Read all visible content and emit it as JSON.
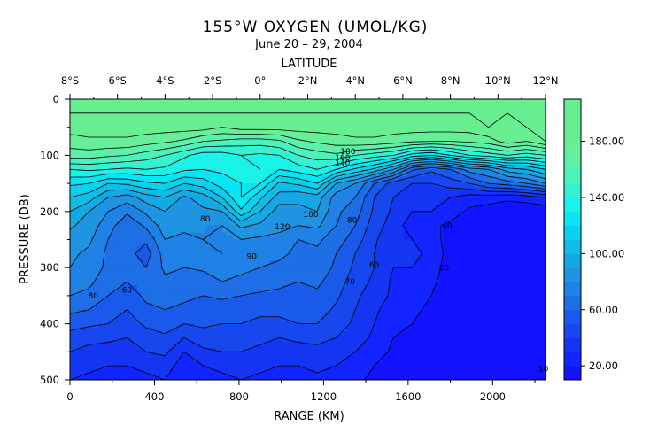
{
  "chart_data": {
    "type": "heatmap",
    "title": "155°W OXYGEN (UMOL/KG)",
    "subtitle": "June 20 – 29, 2004",
    "top_axis_label": "LATITUDE",
    "top_ticks": [
      "8°S",
      "6°S",
      "4°S",
      "2°S",
      "0°",
      "2°N",
      "4°N",
      "6°N",
      "8°N",
      "10°N",
      "12°N"
    ],
    "xlabel": "RANGE (KM)",
    "xlim": [
      0,
      2250
    ],
    "x_ticks": [
      0,
      400,
      800,
      1200,
      1600,
      2000
    ],
    "ylabel": "PRESSURE (DB)",
    "ylim": [
      0,
      500
    ],
    "y_ticks": [
      0,
      100,
      200,
      300,
      400,
      500
    ],
    "colorbar": {
      "ticks": [
        "20.00",
        "60.00",
        "100.00",
        "140.00",
        "180.00"
      ],
      "range": [
        10,
        210
      ],
      "colors": [
        "#1212ff",
        "#1224ff",
        "#1436f2",
        "#1648ee",
        "#1a5aea",
        "#1e6ee6",
        "#1f82e4",
        "#1f95e2",
        "#14a8e4",
        "#0ebee6",
        "#0ad2ec",
        "#06e6f2",
        "#1af2ea",
        "#34f2d2",
        "#4af2bc",
        "#5cf0a8",
        "#66ee98",
        "#66ee90",
        "#66ee90",
        "#66ee90"
      ]
    },
    "contour_labels": [
      {
        "text": "180",
        "x": 1315,
        "y": 98
      },
      {
        "text": "160",
        "x": 1290,
        "y": 109
      },
      {
        "text": "140",
        "x": 1290,
        "y": 118
      },
      {
        "text": "120",
        "x": 1005,
        "y": 232
      },
      {
        "text": "100",
        "x": 1140,
        "y": 210
      },
      {
        "text": "80",
        "x": 1335,
        "y": 220
      },
      {
        "text": "80",
        "x": 640,
        "y": 218
      },
      {
        "text": "90",
        "x": 860,
        "y": 285
      },
      {
        "text": "80",
        "x": 110,
        "y": 355
      },
      {
        "text": "60",
        "x": 270,
        "y": 345
      },
      {
        "text": "70",
        "x": 1325,
        "y": 330
      },
      {
        "text": "60",
        "x": 1440,
        "y": 300
      },
      {
        "text": "60",
        "x": 1770,
        "y": 305
      },
      {
        "text": "40",
        "x": 1785,
        "y": 230
      },
      {
        "text": "10",
        "x": 2240,
        "y": 485
      }
    ],
    "grid": [
      [
        200,
        195,
        195,
        200,
        195,
        195,
        195,
        195,
        195,
        195,
        195,
        195,
        195,
        195,
        195,
        195,
        195,
        195,
        195,
        195,
        195,
        195,
        195,
        195,
        195,
        195
      ],
      [
        190,
        190,
        190,
        190,
        190,
        190,
        190,
        190,
        190,
        190,
        190,
        190,
        190,
        190,
        190,
        190,
        190,
        190,
        190,
        190,
        190,
        190,
        190,
        190,
        190,
        195
      ],
      [
        185,
        185,
        185,
        185,
        185,
        185,
        185,
        185,
        180,
        185,
        185,
        185,
        185,
        185,
        185,
        185,
        185,
        185,
        185,
        185,
        185,
        185,
        190,
        185,
        190,
        195
      ],
      [
        175,
        178,
        178,
        178,
        175,
        172,
        168,
        160,
        158,
        155,
        155,
        158,
        168,
        172,
        175,
        178,
        178,
        175,
        172,
        170,
        170,
        172,
        175,
        185,
        180,
        190
      ],
      [
        165,
        165,
        162,
        160,
        155,
        150,
        142,
        135,
        135,
        140,
        138,
        140,
        150,
        155,
        158,
        150,
        145,
        140,
        125,
        120,
        130,
        140,
        145,
        150,
        145,
        150
      ],
      [
        140,
        142,
        140,
        138,
        140,
        138,
        132,
        130,
        132,
        138,
        140,
        130,
        135,
        140,
        130,
        118,
        108,
        90,
        62,
        52,
        60,
        75,
        80,
        95,
        100,
        110
      ],
      [
        122,
        120,
        110,
        112,
        118,
        120,
        110,
        115,
        125,
        130,
        130,
        108,
        112,
        120,
        90,
        80,
        60,
        45,
        40,
        40,
        45,
        50,
        60,
        65,
        70,
        80
      ],
      [
        110,
        105,
        90,
        85,
        95,
        100,
        88,
        95,
        110,
        130,
        112,
        95,
        92,
        95,
        75,
        70,
        50,
        40,
        35,
        32,
        30,
        25,
        25,
        22,
        25,
        30
      ],
      [
        100,
        90,
        80,
        72,
        82,
        90,
        85,
        88,
        90,
        118,
        100,
        85,
        88,
        90,
        72,
        65,
        48,
        38,
        30,
        30,
        25,
        18,
        15,
        14,
        12,
        12
      ],
      [
        92,
        85,
        75,
        62,
        72,
        85,
        82,
        80,
        80,
        92,
        88,
        82,
        80,
        82,
        70,
        60,
        45,
        35,
        25,
        22,
        18,
        14,
        12,
        12,
        12,
        12
      ],
      [
        85,
        82,
        70,
        60,
        62,
        80,
        78,
        80,
        78,
        80,
        78,
        78,
        70,
        72,
        65,
        55,
        42,
        30,
        30,
        25,
        15,
        13,
        12,
        12,
        12,
        12
      ],
      [
        82,
        78,
        68,
        64,
        55,
        75,
        72,
        75,
        80,
        74,
        72,
        74,
        66,
        68,
        60,
        50,
        40,
        30,
        32,
        28,
        15,
        13,
        12,
        12,
        12,
        12
      ],
      [
        80,
        75,
        68,
        66,
        60,
        72,
        70,
        72,
        75,
        72,
        70,
        66,
        62,
        66,
        58,
        48,
        40,
        30,
        30,
        25,
        15,
        12,
        12,
        12,
        12,
        12
      ],
      [
        75,
        72,
        65,
        60,
        62,
        68,
        66,
        64,
        70,
        68,
        66,
        62,
        60,
        62,
        55,
        45,
        38,
        28,
        28,
        22,
        15,
        12,
        12,
        12,
        12,
        12
      ],
      [
        70,
        68,
        60,
        55,
        62,
        64,
        62,
        60,
        62,
        60,
        58,
        58,
        56,
        58,
        52,
        42,
        35,
        28,
        25,
        20,
        13,
        12,
        12,
        12,
        12,
        12
      ],
      [
        62,
        60,
        55,
        50,
        58,
        60,
        58,
        55,
        55,
        55,
        52,
        52,
        54,
        55,
        48,
        40,
        32,
        25,
        22,
        18,
        12,
        12,
        12,
        12,
        12,
        12
      ],
      [
        55,
        52,
        50,
        45,
        52,
        55,
        50,
        52,
        50,
        50,
        48,
        48,
        50,
        50,
        45,
        38,
        30,
        22,
        20,
        16,
        12,
        12,
        12,
        12,
        12,
        12
      ],
      [
        45,
        42,
        42,
        40,
        45,
        48,
        40,
        45,
        45,
        45,
        42,
        40,
        42,
        42,
        40,
        35,
        28,
        20,
        18,
        15,
        12,
        12,
        12,
        12,
        12,
        12
      ],
      [
        40,
        38,
        36,
        35,
        40,
        42,
        30,
        38,
        40,
        40,
        38,
        36,
        36,
        38,
        35,
        30,
        25,
        18,
        15,
        13,
        12,
        12,
        12,
        12,
        12,
        12
      ],
      [
        35,
        32,
        30,
        30,
        32,
        35,
        25,
        30,
        32,
        35,
        32,
        30,
        30,
        32,
        30,
        25,
        20,
        15,
        13,
        12,
        12,
        12,
        12,
        12,
        12,
        12
      ],
      [
        30,
        28,
        25,
        25,
        28,
        30,
        20,
        26,
        28,
        30,
        28,
        25,
        25,
        28,
        25,
        22,
        18,
        14,
        12,
        12,
        12,
        12,
        12,
        12,
        12,
        12
      ]
    ]
  }
}
